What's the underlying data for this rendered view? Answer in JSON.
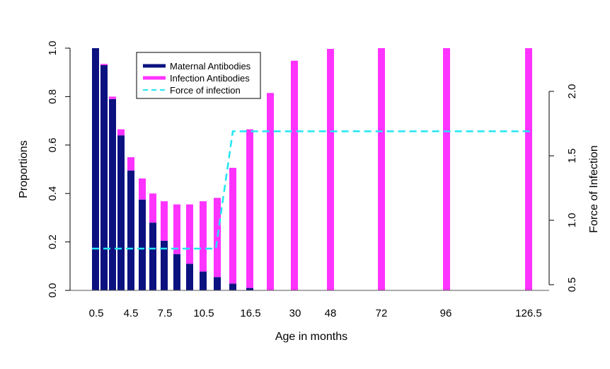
{
  "chart_data": {
    "type": "bar",
    "xlabel": "Age in months",
    "ylabel": "Proportions",
    "ylabel_right": "Force of Infection",
    "ylim": [
      0,
      1.0
    ],
    "ylim_right": [
      0.5,
      2.0
    ],
    "yticks": [
      "0.0",
      "0.2",
      "0.4",
      "0.6",
      "0.8",
      "1.0"
    ],
    "yticks_right": [
      "0.5",
      "1.0",
      "1.5",
      "2.0"
    ],
    "x_tick_labels": [
      "0.5",
      "4.5",
      "7.5",
      "10.5",
      "16.5",
      "30",
      "48",
      "72",
      "96",
      "126.5"
    ],
    "legend_position": "top",
    "colors": {
      "maternal": "#0b1280",
      "infection": "#ff33ff",
      "force": "#22e6f2"
    },
    "series": [
      {
        "name": "Maternal Antibodies",
        "values": [
          1.0,
          0.93,
          0.79,
          0.64,
          0.495,
          0.375,
          0.28,
          0.205,
          0.15,
          0.11,
          0.078,
          0.055,
          0.028,
          0.01,
          0.0,
          0.0,
          0.0,
          0.0,
          0.0,
          0.0
        ]
      },
      {
        "name": "Infection Antibodies",
        "values": [
          0.0,
          0.005,
          0.01,
          0.025,
          0.055,
          0.087,
          0.12,
          0.163,
          0.205,
          0.245,
          0.29,
          0.327,
          0.478,
          0.655,
          0.815,
          0.948,
          0.997,
          1.0,
          1.0,
          1.0
        ]
      },
      {
        "name": "Force of infection",
        "values": [
          0.78,
          1.69
        ]
      }
    ]
  }
}
